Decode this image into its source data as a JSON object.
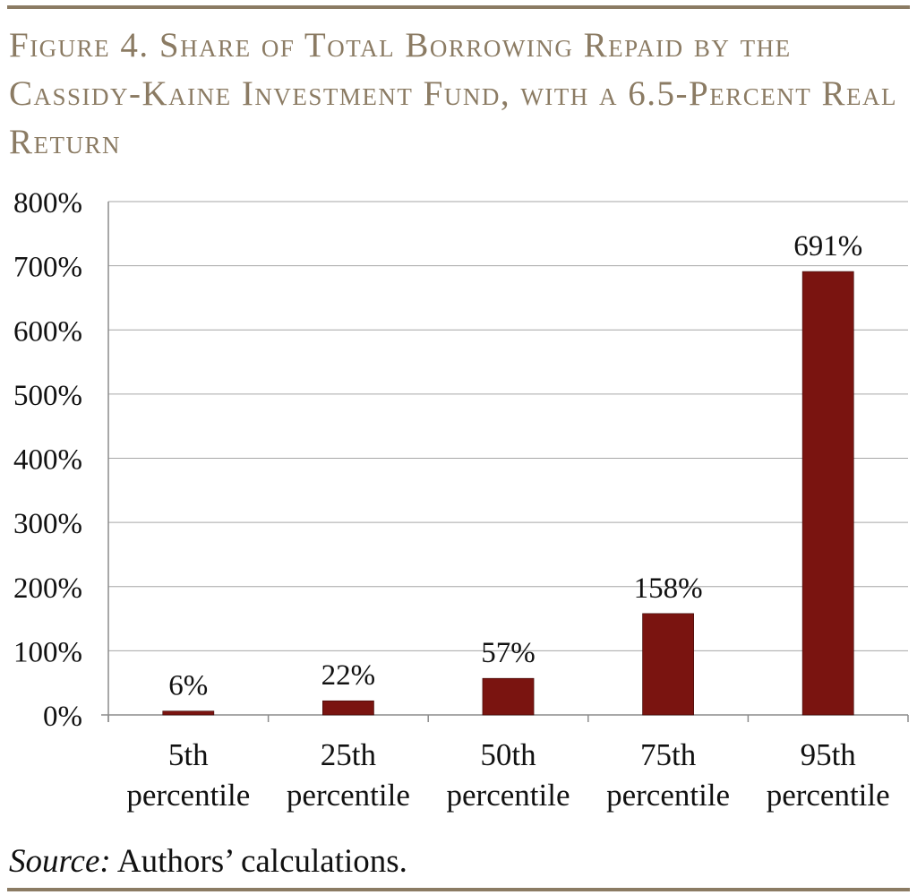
{
  "figure": {
    "title": "Figure 4. Share of Total Borrowing Repaid by the Cassidy-Kaine Investment Fund, with a 6.5-Percent Real Return",
    "source_label": "Source:",
    "source_text": " Authors’ calculations."
  },
  "colors": {
    "title": "#8b7b63",
    "bar": "#7a1410",
    "grid": "#a6a6a6",
    "axis": "#8c8c8c"
  },
  "chart_data": {
    "type": "bar",
    "categories": [
      "5th\npercentile",
      "25th\npercentile",
      "50th\npercentile",
      "75th\npercentile",
      "95th\npercentile"
    ],
    "values": [
      6,
      22,
      57,
      158,
      691
    ],
    "data_labels": [
      "6%",
      "22%",
      "57%",
      "158%",
      "691%"
    ],
    "y_ticks": [
      "0%",
      "100%",
      "200%",
      "300%",
      "400%",
      "500%",
      "600%",
      "700%",
      "800%"
    ],
    "ylim": [
      0,
      800
    ],
    "grid": true,
    "legend": "none",
    "title": "",
    "xlabel": "",
    "ylabel": ""
  }
}
